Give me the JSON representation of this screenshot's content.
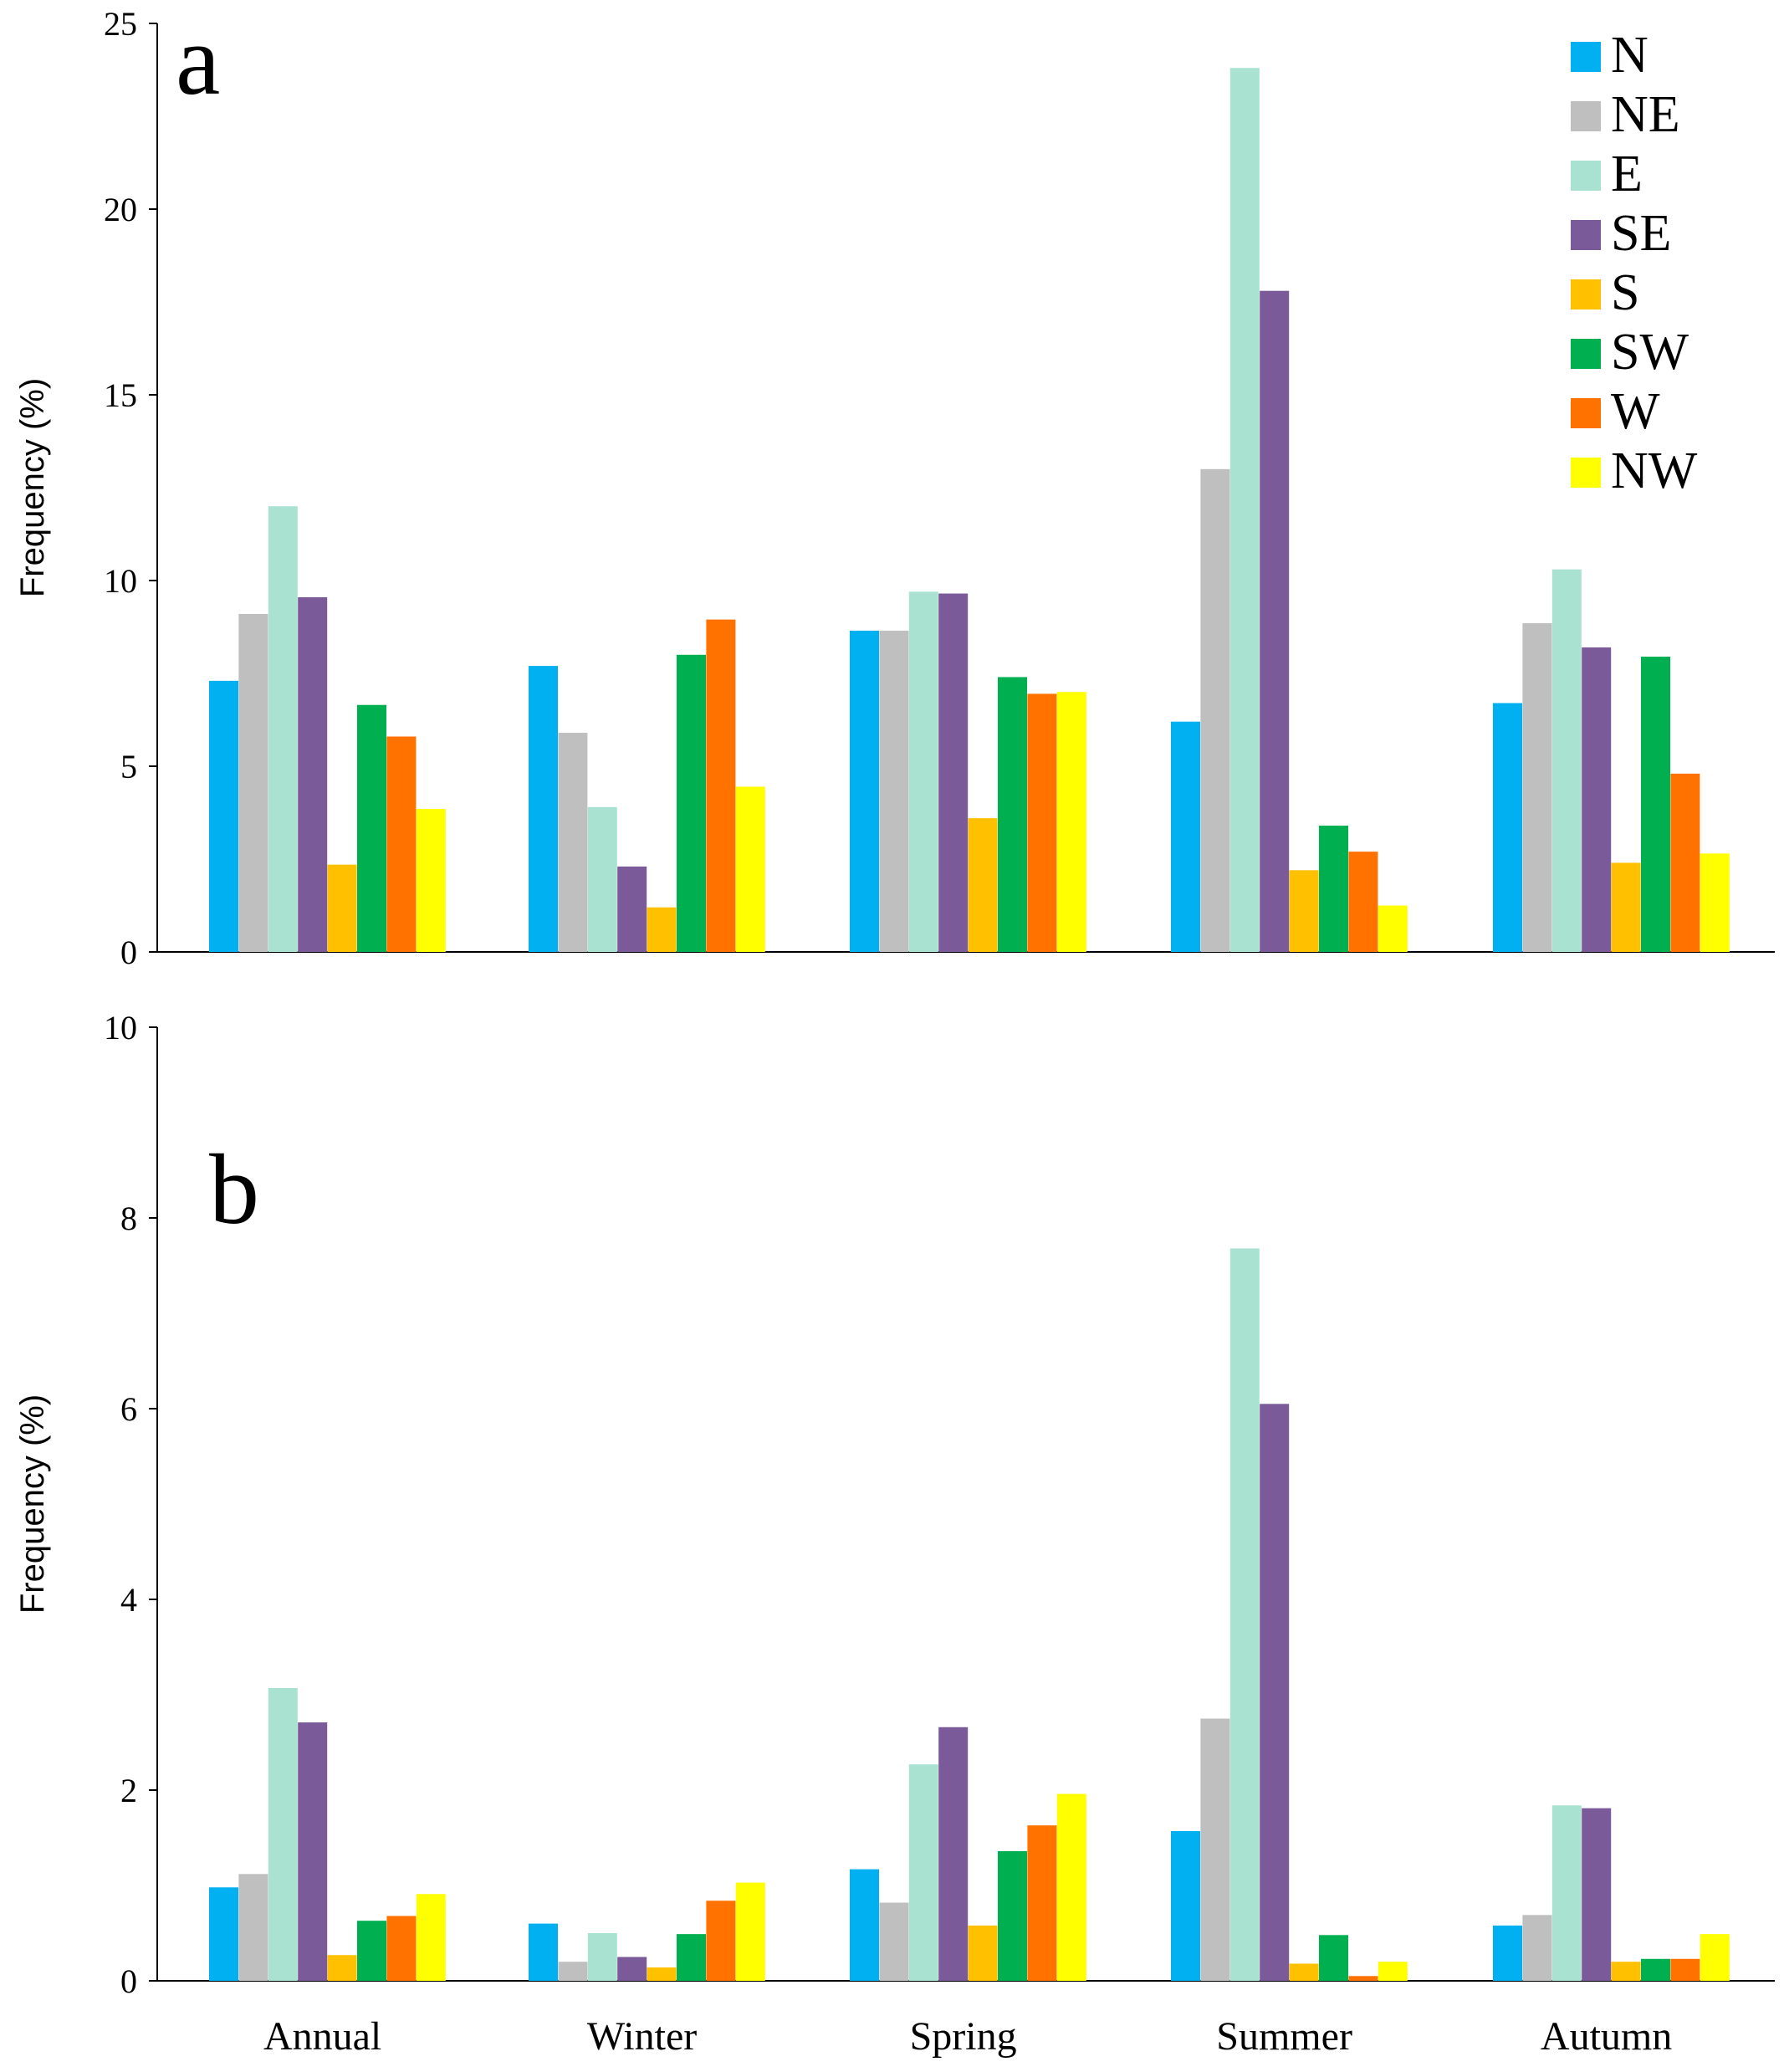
{
  "chart_data": [
    {
      "type": "bar",
      "panel_label": "a",
      "categories": [
        "Annual",
        "Winter",
        "Spring",
        "Summer",
        "Autumn"
      ],
      "ylabel": "Frequency (%)",
      "ylim": [
        0,
        25
      ],
      "yticks": [
        "0",
        "5",
        "10",
        "15",
        "20",
        "25"
      ],
      "show_category_labels": false,
      "grid": false,
      "legend": "top-right",
      "series": [
        {
          "name": "N",
          "color": "#00b0f0",
          "values": [
            7.3,
            7.7,
            8.65,
            6.2,
            6.7
          ]
        },
        {
          "name": "NE",
          "color": "#bfbfbf",
          "values": [
            9.1,
            5.9,
            8.65,
            13.0,
            8.85
          ]
        },
        {
          "name": "E",
          "color": "#a9e2d1",
          "values": [
            12.0,
            3.9,
            9.7,
            23.8,
            10.3
          ]
        },
        {
          "name": "SE",
          "color": "#7a5a99",
          "values": [
            9.55,
            2.3,
            9.65,
            17.8,
            8.2
          ]
        },
        {
          "name": "S",
          "color": "#ffc000",
          "values": [
            2.35,
            1.2,
            3.6,
            2.2,
            2.4
          ]
        },
        {
          "name": "SW",
          "color": "#00b050",
          "values": [
            6.65,
            8.0,
            7.4,
            3.4,
            7.95
          ]
        },
        {
          "name": "W",
          "color": "#ff7200",
          "values": [
            5.8,
            8.95,
            6.95,
            2.7,
            4.8
          ]
        },
        {
          "name": "NW",
          "color": "#ffff00",
          "values": [
            3.85,
            4.45,
            7.0,
            1.25,
            2.65
          ]
        }
      ]
    },
    {
      "type": "bar",
      "panel_label": "b",
      "categories": [
        "Annual",
        "Winter",
        "Spring",
        "Summer",
        "Autumn"
      ],
      "ylabel": "Frequency (%)",
      "ylim": [
        0,
        10
      ],
      "yticks": [
        "0",
        "2",
        "4",
        "6",
        "8",
        "10"
      ],
      "show_category_labels": true,
      "grid": false,
      "series": [
        {
          "name": "N",
          "color": "#00b0f0",
          "values": [
            0.98,
            0.6,
            1.17,
            1.57,
            0.58
          ]
        },
        {
          "name": "NE",
          "color": "#bfbfbf",
          "values": [
            1.12,
            0.2,
            0.82,
            2.75,
            0.69
          ]
        },
        {
          "name": "E",
          "color": "#a9e2d1",
          "values": [
            3.07,
            0.5,
            2.27,
            7.68,
            1.84
          ]
        },
        {
          "name": "SE",
          "color": "#7a5a99",
          "values": [
            2.71,
            0.25,
            2.66,
            6.05,
            1.81
          ]
        },
        {
          "name": "S",
          "color": "#ffc000",
          "values": [
            0.27,
            0.14,
            0.58,
            0.18,
            0.2
          ]
        },
        {
          "name": "SW",
          "color": "#00b050",
          "values": [
            0.63,
            0.49,
            1.36,
            0.48,
            0.23
          ]
        },
        {
          "name": "W",
          "color": "#ff7200",
          "values": [
            0.68,
            0.84,
            1.63,
            0.05,
            0.23
          ]
        },
        {
          "name": "NW",
          "color": "#ffff00",
          "values": [
            0.91,
            1.03,
            1.96,
            0.2,
            0.49
          ]
        }
      ]
    }
  ]
}
